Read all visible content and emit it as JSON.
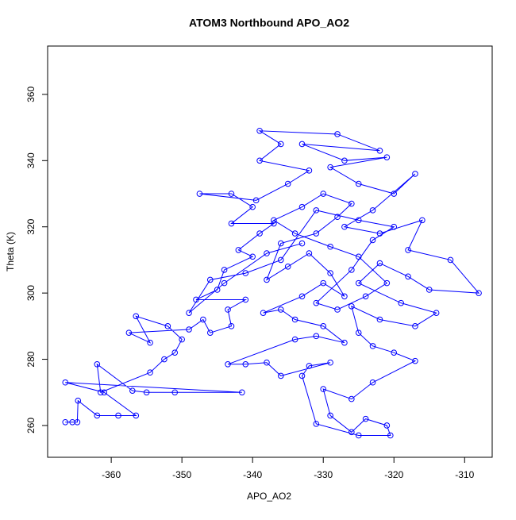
{
  "chart_data": {
    "type": "line",
    "title": "ATOM3 Northbound APO_AO2",
    "x_label": "APO_AO2",
    "y_label": "Theta (K)",
    "color": "#0000ff",
    "markers": true,
    "xlim": [
      -369,
      -306.1
    ],
    "ylim": [
      250.4,
      374.6
    ],
    "xticks": [
      -360,
      -350,
      -340,
      -330,
      -320,
      -310
    ],
    "yticks": [
      260,
      280,
      300,
      320,
      340,
      360
    ],
    "x": [
      -366.5,
      -365.5,
      -364.8,
      -364.7,
      -362,
      -359,
      -356.5,
      -361,
      -366.5,
      -341.5,
      -351,
      -355,
      -357,
      -362,
      -361.5,
      -354.5,
      -352.5,
      -351,
      -350,
      -352,
      -356.5,
      -354.5,
      -357.5,
      -349,
      -347,
      -346,
      -343,
      -343.5,
      -341,
      -348,
      -345,
      -344,
      -340,
      -342,
      -339,
      -337,
      -343,
      -340,
      -343,
      -347.5,
      -339.5,
      -335,
      -332,
      -339,
      -336,
      -339,
      -328,
      -322,
      -333,
      -327,
      -321,
      -329,
      -325,
      -320,
      -317,
      -323,
      -327,
      -322,
      -316,
      -318,
      -312,
      -308,
      -315,
      -318,
      -322,
      -325,
      -319,
      -314,
      -317,
      -322,
      -326,
      -325,
      -323,
      -320,
      -317,
      -323,
      -326,
      -330,
      -329,
      -326,
      -324,
      -321,
      -320.5,
      -325,
      -331,
      -333,
      -332,
      -329,
      -336,
      -338,
      -341,
      -343.5,
      -334,
      -331,
      -327,
      -330,
      -334,
      -336,
      -338.5,
      -333,
      -330,
      -327,
      -329,
      -332,
      -335,
      -338,
      -336,
      -331,
      -328,
      -326,
      -330,
      -333,
      -337,
      -334,
      -329,
      -325,
      -321,
      -324,
      -328,
      -331,
      -326,
      -323,
      -320,
      -325,
      -331,
      -336,
      -341,
      -346,
      -349,
      -344,
      -338,
      -333
    ],
    "values": [
      261,
      261,
      261,
      267.5,
      263,
      263,
      263,
      270,
      273,
      270,
      270,
      270,
      270.5,
      278.5,
      270,
      276,
      280,
      282,
      286,
      290,
      293,
      285,
      288,
      289,
      292,
      288,
      290,
      295,
      298,
      298,
      301,
      307,
      311,
      313,
      318,
      321,
      321,
      326,
      330,
      330,
      328,
      333,
      337,
      340,
      345,
      349,
      348,
      343,
      345,
      340,
      341,
      338,
      333,
      330,
      336,
      325,
      320,
      318,
      322,
      313,
      310,
      300,
      301,
      305,
      309,
      303,
      297,
      294,
      290,
      292,
      296,
      288,
      284,
      282,
      279.5,
      273,
      268,
      271,
      263,
      258,
      262,
      260,
      257,
      257,
      260.5,
      275,
      278,
      279,
      275,
      279,
      278.5,
      278.5,
      286,
      287,
      285,
      290,
      292,
      295,
      294,
      299,
      303,
      299,
      306,
      312,
      308,
      304,
      315,
      318,
      323,
      327,
      330,
      326,
      322,
      318,
      314,
      311,
      303,
      299,
      295,
      297,
      307,
      316,
      320,
      322,
      325,
      310,
      306,
      304,
      294,
      303,
      312,
      315
    ]
  }
}
